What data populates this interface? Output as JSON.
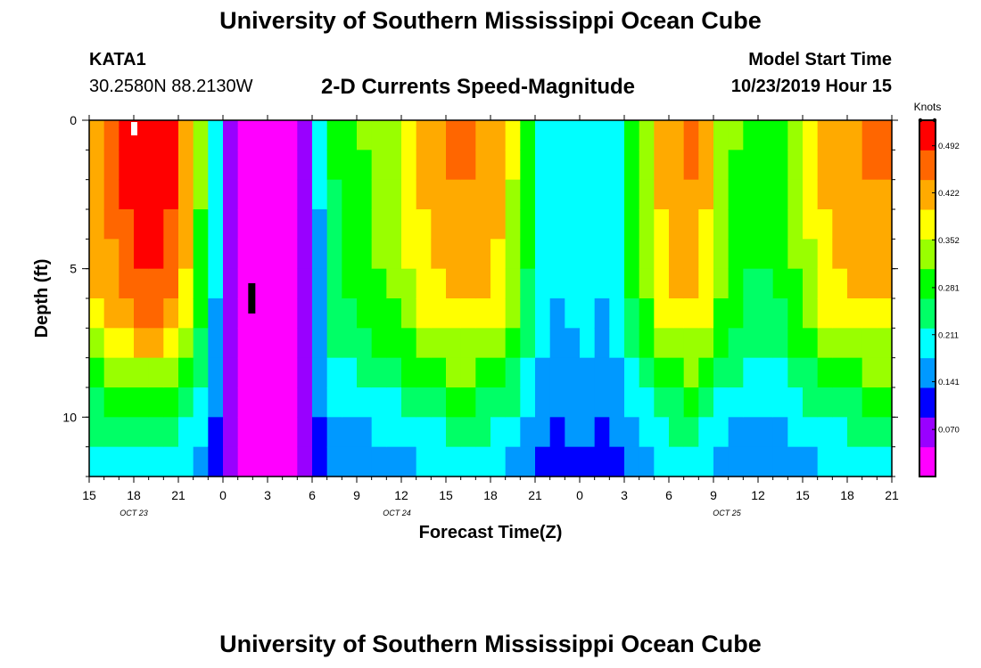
{
  "header": {
    "title": "University of Southern Mississippi Ocean Cube",
    "station": "KATA1",
    "coords": "30.2580N 88.2130W",
    "subtitle": "2-D Currents Speed-Magnitude",
    "start_label": "Model Start Time",
    "start_value": "10/23/2019 Hour 15"
  },
  "footer": {
    "title": "University of Southern Mississippi Ocean Cube"
  },
  "chart_data": {
    "type": "heatmap",
    "xlabel": "Forecast Time(Z)",
    "ylabel": "Depth (ft)",
    "x_ticks": [
      "15",
      "18",
      "21",
      "0",
      "3",
      "6",
      "9",
      "12",
      "15",
      "18",
      "21",
      "0",
      "3",
      "6",
      "9",
      "12",
      "15",
      "18",
      "21"
    ],
    "date_labels": [
      {
        "label": "OCT 23",
        "tick_index": 1
      },
      {
        "label": "OCT 24",
        "tick_index": 6.9
      },
      {
        "label": "OCT 25",
        "tick_index": 14.3
      }
    ],
    "y_ticks": [
      0,
      5,
      10
    ],
    "ylim": [
      0,
      12
    ],
    "forecast_hours": 54,
    "depth_levels_ft": [
      0,
      0.5,
      1.5,
      2.5,
      3.5,
      4.5,
      5.5,
      6.5,
      7.5,
      8.5,
      9.5,
      10.5,
      11.5
    ],
    "colorbar": {
      "label": "Knots",
      "ticks": [
        0.07,
        0.141,
        0.211,
        0.281,
        0.352,
        0.422,
        0.492
      ],
      "tick_labels": [
        "0.070",
        "0.141",
        "0.211",
        "0.281",
        "0.352",
        "0.422",
        "0.492"
      ],
      "range": [
        0,
        0.53
      ],
      "colors": [
        "#ff00ff",
        "#9900ff",
        "#0000ff",
        "#0099ff",
        "#00ffff",
        "#00ff66",
        "#00ff00",
        "#99ff00",
        "#ffff00",
        "#ffaa00",
        "#ff6600",
        "#ff0000"
      ]
    },
    "surface_speed_by_hour": [
      0.44,
      0.47,
      0.5,
      0.52,
      0.52,
      0.5,
      0.43,
      0.32,
      0.19,
      0.06,
      0.01,
      0.01,
      0.01,
      0.02,
      0.07,
      0.18,
      0.27,
      0.3,
      0.31,
      0.33,
      0.35,
      0.38,
      0.41,
      0.43,
      0.45,
      0.45,
      0.44,
      0.42,
      0.36,
      0.28,
      0.21,
      0.19,
      0.2,
      0.21,
      0.19,
      0.22,
      0.29,
      0.35,
      0.41,
      0.44,
      0.45,
      0.41,
      0.35,
      0.31,
      0.28,
      0.28,
      0.3,
      0.33,
      0.37,
      0.41,
      0.43,
      0.44,
      0.45,
      0.45
    ],
    "vertical_profile_factor_by_depth": [
      1.0,
      1.0,
      0.99,
      0.97,
      0.95,
      0.92,
      0.88,
      0.82,
      0.72,
      0.6,
      0.48,
      0.36,
      0.25
    ],
    "bottom_minimum_knots": 0.1,
    "markers": [
      {
        "type": "white-bar",
        "hour": 3,
        "depth_ft": 0.25,
        "note": "surface marker"
      },
      {
        "type": "black-bar",
        "hour": 11,
        "depth_ft": 6,
        "note": "mid-depth marker"
      }
    ]
  }
}
